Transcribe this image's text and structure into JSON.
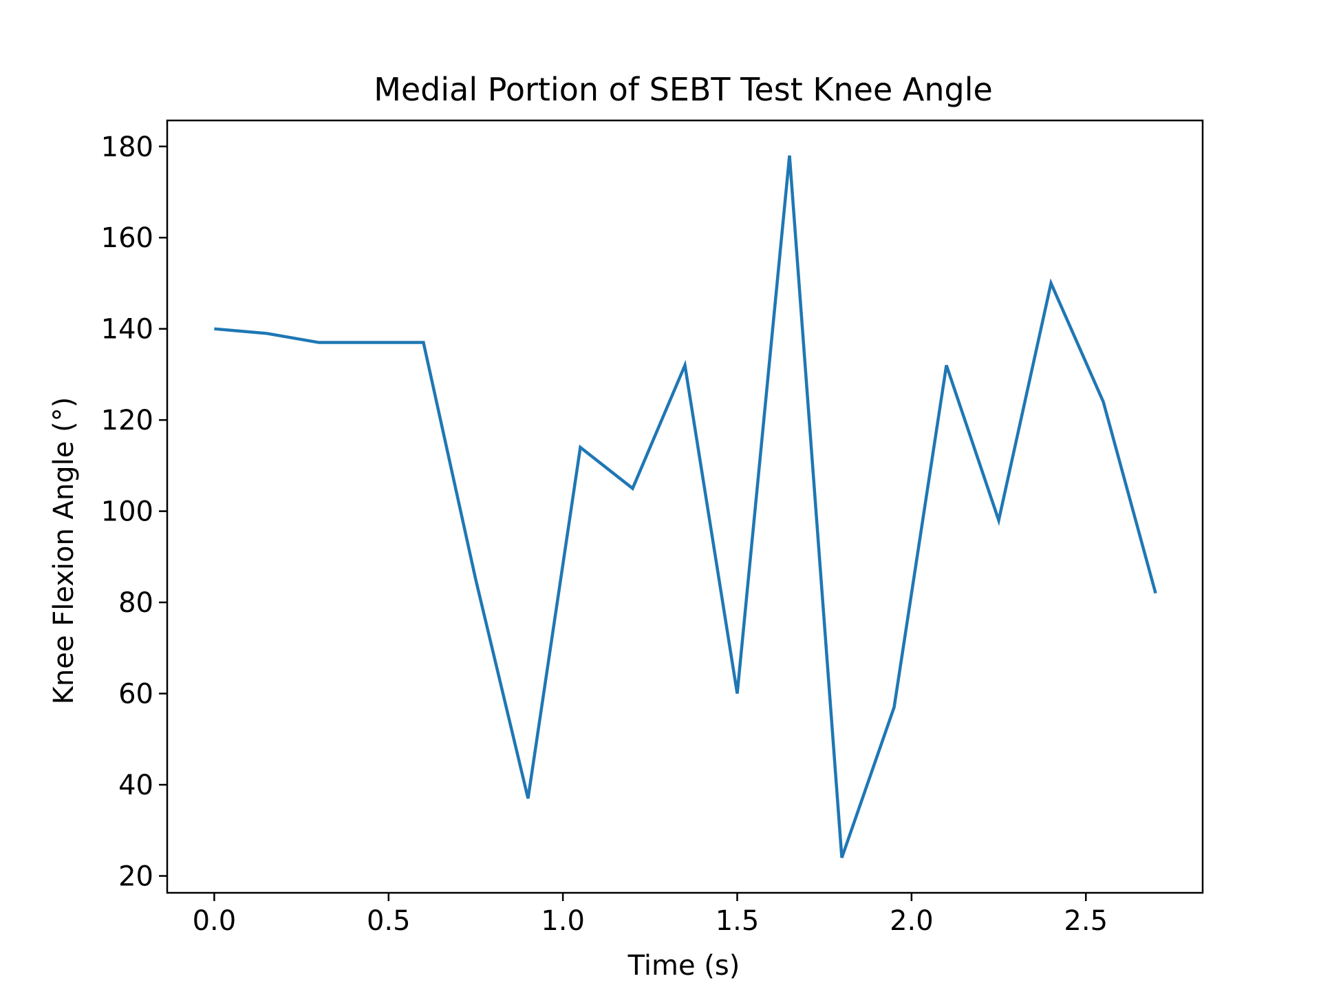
{
  "chart_data": {
    "type": "line",
    "title": "Medial Portion of SEBT Test Knee Angle",
    "xlabel": "Time (s)",
    "ylabel": "Knee Flexion Angle (°)",
    "xlim": [
      -0.135,
      2.835
    ],
    "ylim": [
      16.3,
      185.7
    ],
    "x_ticks": [
      0.0,
      0.5,
      1.0,
      1.5,
      2.0,
      2.5
    ],
    "x_tick_labels": [
      "0.0",
      "0.5",
      "1.0",
      "1.5",
      "2.0",
      "2.5"
    ],
    "y_ticks": [
      20,
      40,
      60,
      80,
      100,
      120,
      140,
      160,
      180
    ],
    "y_tick_labels": [
      "20",
      "40",
      "60",
      "80",
      "100",
      "120",
      "140",
      "160",
      "180"
    ],
    "grid": false,
    "series": [
      {
        "color": "#1f77b4",
        "x": [
          0.0,
          0.15,
          0.3,
          0.45,
          0.6,
          0.75,
          0.9,
          1.05,
          1.2,
          1.35,
          1.5,
          1.65,
          1.8,
          1.95,
          2.1,
          2.25,
          2.4,
          2.55,
          2.7
        ],
        "y": [
          140,
          139,
          137,
          137,
          137,
          85,
          37,
          114,
          105,
          132,
          60,
          178,
          24,
          57,
          132,
          98,
          150,
          124,
          82
        ]
      }
    ]
  }
}
